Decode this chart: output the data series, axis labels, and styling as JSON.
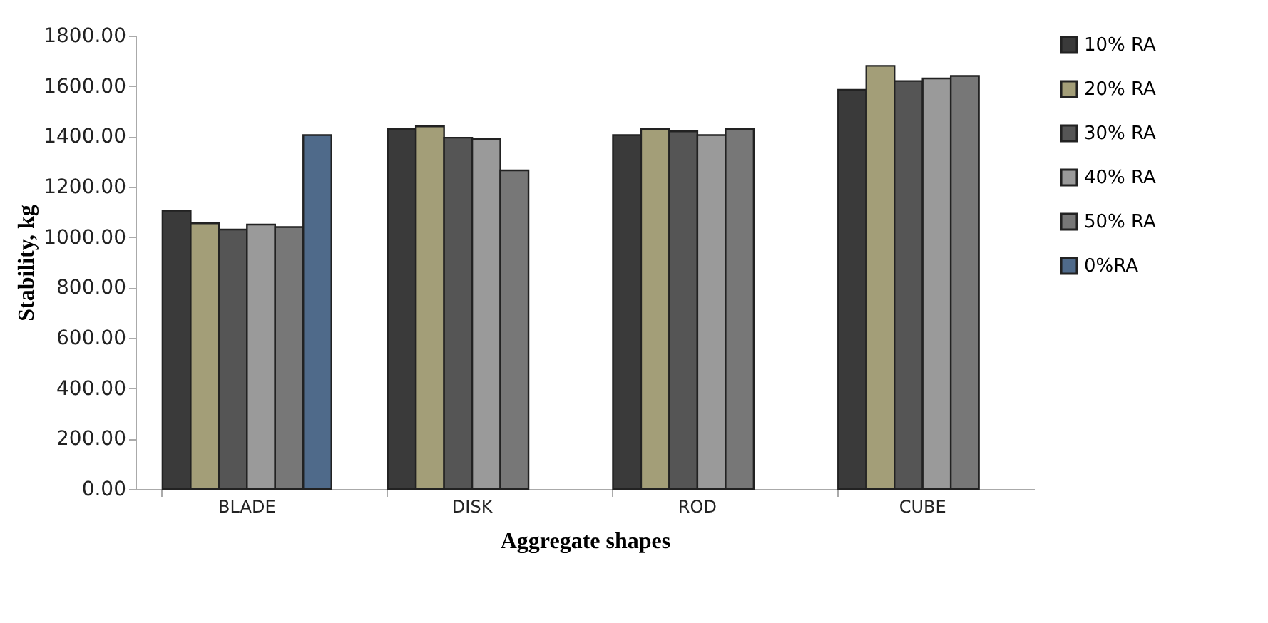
{
  "chart_data": {
    "type": "bar",
    "xlabel": "Aggregate shapes",
    "ylabel": "Stability, kg",
    "categories": [
      "BLADE",
      "DISK",
      "ROD",
      "CUBE"
    ],
    "series": [
      {
        "name": "10% RA",
        "color": "#3a3a3a",
        "values": [
          1105,
          1430,
          1405,
          1585
        ]
      },
      {
        "name": "20% RA",
        "color": "#a39e78",
        "values": [
          1055,
          1440,
          1430,
          1680
        ]
      },
      {
        "name": "30% RA",
        "color": "#555555",
        "values": [
          1030,
          1395,
          1420,
          1620
        ]
      },
      {
        "name": "40% RA",
        "color": "#9a9a9a",
        "values": [
          1050,
          1390,
          1405,
          1630
        ]
      },
      {
        "name": "50% RA",
        "color": "#777777",
        "values": [
          1040,
          1265,
          1430,
          1640
        ]
      },
      {
        "name": "0%RA",
        "color": "#4f6a8a",
        "values": [
          1405,
          null,
          null,
          null
        ]
      }
    ],
    "ylim": [
      0,
      1800
    ],
    "yticks": [
      {
        "value": 0,
        "label": "0.00"
      },
      {
        "value": 200,
        "label": "200.00"
      },
      {
        "value": 400,
        "label": "400.00"
      },
      {
        "value": 600,
        "label": "600.00"
      },
      {
        "value": 800,
        "label": "800.00"
      },
      {
        "value": 1000,
        "label": "1000.00"
      },
      {
        "value": 1200,
        "label": "1200.00"
      },
      {
        "value": 1400,
        "label": "1400.00"
      },
      {
        "value": 1600,
        "label": "1600.00"
      },
      {
        "value": 1800,
        "label": "1800.00"
      }
    ],
    "grid": false,
    "legend": "right"
  }
}
